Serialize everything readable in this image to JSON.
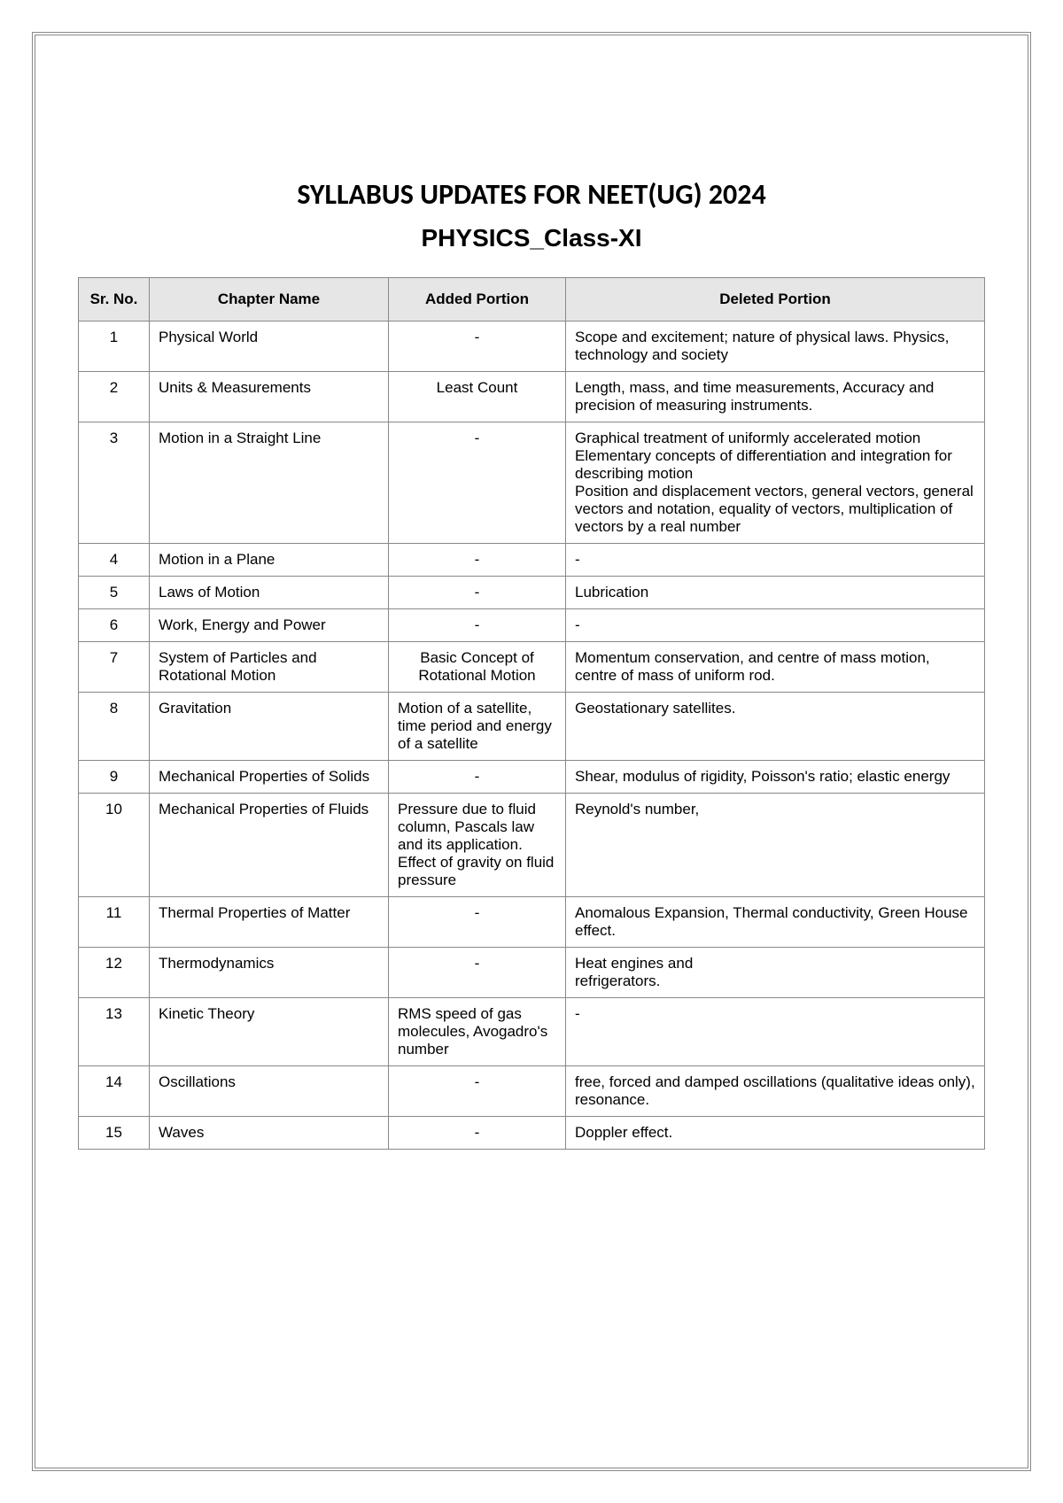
{
  "title": "SYLLABUS UPDATES FOR NEET(UG) 2024",
  "subtitle": "PHYSICS_Class-XI",
  "headers": {
    "sr": "Sr. No.",
    "chapter": "Chapter Name",
    "added": "Added Portion",
    "deleted": "Deleted Portion"
  },
  "rows": [
    {
      "sr": "1",
      "chapter": "Physical World",
      "added": "-",
      "deleted": "Scope and excitement; nature of physical laws. Physics, technology and society"
    },
    {
      "sr": "2",
      "chapter": "Units & Measurements",
      "added": "Least Count",
      "deleted": "Length, mass, and time measurements, Accuracy and precision of measuring instruments."
    },
    {
      "sr": "3",
      "chapter": "Motion in a Straight Line",
      "added": "-",
      "deleted": "Graphical treatment of uniformly accelerated motion\nElementary concepts of differentiation and integration for describing motion\nPosition and displacement vectors, general vectors, general vectors and notation, equality of vectors, multiplication of vectors by a real number"
    },
    {
      "sr": "4",
      "chapter": "Motion in a Plane",
      "added": "-",
      "deleted": "-"
    },
    {
      "sr": "5",
      "chapter": "Laws of Motion",
      "added": "-",
      "deleted": "Lubrication"
    },
    {
      "sr": "6",
      "chapter": "Work, Energy and Power",
      "added": "-",
      "deleted": "-"
    },
    {
      "sr": "7",
      "chapter": "System of Particles and Rotational Motion",
      "added": "Basic Concept of Rotational Motion",
      "deleted": "Momentum conservation, and centre of mass motion, centre of mass of uniform rod."
    },
    {
      "sr": "8",
      "chapter": "Gravitation",
      "added": "Motion of a satellite, time period and energy of a satellite",
      "deleted": "Geostationary satellites."
    },
    {
      "sr": "9",
      "chapter": "Mechanical Properties of Solids",
      "added": "-",
      "deleted": "Shear, modulus of rigidity, Poisson's ratio; elastic energy"
    },
    {
      "sr": "10",
      "chapter": "Mechanical Properties of Fluids",
      "added": "Pressure due to fluid column, Pascals law and its application. Effect of gravity on fluid pressure",
      "deleted": "Reynold's number,"
    },
    {
      "sr": "11",
      "chapter": "Thermal Properties of Matter",
      "added": "-",
      "deleted": "Anomalous Expansion, Thermal conductivity, Green House effect."
    },
    {
      "sr": "12",
      "chapter": "Thermodynamics",
      "added": "-",
      "deleted": "Heat engines and\nrefrigerators."
    },
    {
      "sr": "13",
      "chapter": "Kinetic Theory",
      "added": "RMS speed of gas molecules, Avogadro's number",
      "deleted": "-"
    },
    {
      "sr": "14",
      "chapter": "Oscillations",
      "added": "-",
      "deleted": "free, forced and damped oscillations (qualitative ideas only), resonance."
    },
    {
      "sr": "15",
      "chapter": "Waves",
      "added": "-",
      "deleted": "Doppler effect."
    }
  ],
  "style": {
    "page_bg": "#ffffff",
    "border_color": "#888888",
    "header_bg": "#e6e6e6",
    "text_color": "#000000",
    "body_fontsize": 17,
    "title_fontsize": 32,
    "subtitle_fontsize": 28
  }
}
